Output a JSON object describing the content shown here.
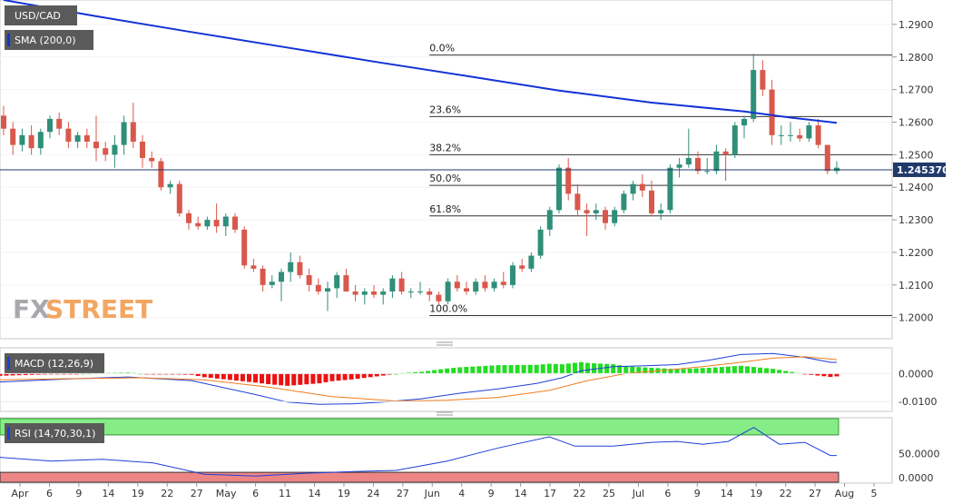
{
  "watermark": {
    "part1": "FX",
    "part2": "STREET"
  },
  "colors": {
    "bull": "#2f8f79",
    "bear": "#d9584c",
    "sma": "#1233d6",
    "macd_line": "#1e3fd8",
    "signal_line": "#f07d1e",
    "hist_pos": "#22dd22",
    "hist_neg": "#ee1111",
    "rsi_line": "#1e3fd8",
    "rsi_overbought": "#86ec86",
    "rsi_oversold": "#ee8585",
    "price_tag_bg": "#1f3a6b",
    "panel_tag_bg": "#5a5a5a"
  },
  "chart_data": [
    {
      "type": "candlestick",
      "title": "USD/CAD",
      "indicator_label": "SMA (200,0)",
      "last_price_label": "1.245370",
      "last_price": 1.24537,
      "ylim": [
        1.1935,
        1.2975
      ],
      "y_ticks": [
        "1.2000",
        "1.2100",
        "1.2200",
        "1.2300",
        "1.2400",
        "1.2500",
        "1.2600",
        "1.2700",
        "1.2800",
        "1.2900"
      ],
      "x_tick_labels": [
        "Apr",
        "6",
        "9",
        "14",
        "19",
        "22",
        "27",
        "May",
        "6",
        "11",
        "14",
        "19",
        "24",
        "27",
        "Jun",
        "4",
        "9",
        "14",
        "17",
        "22",
        "25",
        "Jul",
        "6",
        "9",
        "14",
        "19",
        "22",
        "27",
        "Aug",
        "5"
      ],
      "fibonacci": {
        "high": 1.2806,
        "low": 1.2006,
        "levels": [
          {
            "label": "0.0%",
            "value": 1.2806
          },
          {
            "label": "23.6%",
            "value": 1.2617
          },
          {
            "label": "38.2%",
            "value": 1.25
          },
          {
            "label": "50.0%",
            "value": 1.2406
          },
          {
            "label": "61.8%",
            "value": 1.2312
          },
          {
            "label": "100.0%",
            "value": 1.2006
          }
        ]
      },
      "sma_200": [
        {
          "x": 0,
          "y": 1.2975
        },
        {
          "x": 10,
          "y": 1.2925
        },
        {
          "x": 20,
          "y": 1.2878
        },
        {
          "x": 30,
          "y": 1.2832
        },
        {
          "x": 40,
          "y": 1.2786
        },
        {
          "x": 50,
          "y": 1.2742
        },
        {
          "x": 60,
          "y": 1.2697
        },
        {
          "x": 70,
          "y": 1.266
        },
        {
          "x": 80,
          "y": 1.2633
        },
        {
          "x": 85,
          "y": 1.2614
        },
        {
          "x": 90,
          "y": 1.2598
        }
      ],
      "candles": [
        [
          1.262,
          1.265,
          1.256,
          1.258
        ],
        [
          1.258,
          1.26,
          1.25,
          1.253
        ],
        [
          1.253,
          1.258,
          1.251,
          1.256
        ],
        [
          1.256,
          1.259,
          1.25,
          1.252
        ],
        [
          1.252,
          1.258,
          1.25,
          1.257
        ],
        [
          1.257,
          1.262,
          1.255,
          1.261
        ],
        [
          1.261,
          1.263,
          1.256,
          1.258
        ],
        [
          1.258,
          1.26,
          1.252,
          1.254
        ],
        [
          1.254,
          1.257,
          1.252,
          1.256
        ],
        [
          1.256,
          1.258,
          1.252,
          1.254
        ],
        [
          1.254,
          1.262,
          1.248,
          1.252
        ],
        [
          1.252,
          1.254,
          1.248,
          1.25
        ],
        [
          1.25,
          1.256,
          1.246,
          1.253
        ],
        [
          1.253,
          1.262,
          1.25,
          1.26
        ],
        [
          1.26,
          1.266,
          1.252,
          1.254
        ],
        [
          1.254,
          1.256,
          1.246,
          1.249
        ],
        [
          1.249,
          1.251,
          1.246,
          1.248
        ],
        [
          1.248,
          1.249,
          1.239,
          1.24
        ],
        [
          1.24,
          1.242,
          1.238,
          1.241
        ],
        [
          1.241,
          1.242,
          1.231,
          1.232
        ],
        [
          1.232,
          1.233,
          1.227,
          1.229
        ],
        [
          1.229,
          1.231,
          1.227,
          1.228
        ],
        [
          1.228,
          1.231,
          1.227,
          1.23
        ],
        [
          1.23,
          1.235,
          1.226,
          1.228
        ],
        [
          1.228,
          1.232,
          1.225,
          1.231
        ],
        [
          1.231,
          1.232,
          1.226,
          1.227
        ],
        [
          1.227,
          1.228,
          1.215,
          1.216
        ],
        [
          1.216,
          1.218,
          1.214,
          1.215
        ],
        [
          1.215,
          1.216,
          1.208,
          1.21
        ],
        [
          1.21,
          1.213,
          1.209,
          1.211
        ],
        [
          1.211,
          1.215,
          1.205,
          1.214
        ],
        [
          1.214,
          1.22,
          1.211,
          1.217
        ],
        [
          1.217,
          1.219,
          1.212,
          1.213
        ],
        [
          1.213,
          1.215,
          1.208,
          1.21
        ],
        [
          1.21,
          1.212,
          1.207,
          1.208
        ],
        [
          1.208,
          1.211,
          1.202,
          1.209
        ],
        [
          1.209,
          1.214,
          1.206,
          1.213
        ],
        [
          1.213,
          1.215,
          1.208,
          1.208
        ],
        [
          1.208,
          1.21,
          1.205,
          1.207
        ],
        [
          1.207,
          1.209,
          1.204,
          1.208
        ],
        [
          1.208,
          1.21,
          1.206,
          1.207
        ],
        [
          1.207,
          1.209,
          1.204,
          1.208
        ],
        [
          1.208,
          1.213,
          1.206,
          1.212
        ],
        [
          1.212,
          1.214,
          1.207,
          1.208
        ],
        [
          1.208,
          1.209,
          1.206,
          1.208
        ],
        [
          1.208,
          1.211,
          1.207,
          1.208
        ],
        [
          1.208,
          1.209,
          1.205,
          1.207
        ],
        [
          1.207,
          1.208,
          1.204,
          1.205
        ],
        [
          1.205,
          1.212,
          1.204,
          1.211
        ],
        [
          1.211,
          1.213,
          1.208,
          1.209
        ],
        [
          1.209,
          1.211,
          1.207,
          1.208
        ],
        [
          1.208,
          1.212,
          1.207,
          1.211
        ],
        [
          1.211,
          1.213,
          1.208,
          1.209
        ],
        [
          1.209,
          1.212,
          1.208,
          1.211
        ],
        [
          1.211,
          1.214,
          1.209,
          1.21
        ],
        [
          1.21,
          1.217,
          1.209,
          1.216
        ],
        [
          1.216,
          1.218,
          1.214,
          1.215
        ],
        [
          1.215,
          1.22,
          1.214,
          1.219
        ],
        [
          1.219,
          1.228,
          1.218,
          1.227
        ],
        [
          1.227,
          1.234,
          1.225,
          1.233
        ],
        [
          1.233,
          1.247,
          1.232,
          1.246
        ],
        [
          1.246,
          1.249,
          1.236,
          1.238
        ],
        [
          1.238,
          1.241,
          1.231,
          1.233
        ],
        [
          1.233,
          1.235,
          1.225,
          1.232
        ],
        [
          1.232,
          1.235,
          1.23,
          1.233
        ],
        [
          1.233,
          1.234,
          1.227,
          1.229
        ],
        [
          1.229,
          1.234,
          1.228,
          1.233
        ],
        [
          1.233,
          1.239,
          1.232,
          1.238
        ],
        [
          1.238,
          1.242,
          1.236,
          1.241
        ],
        [
          1.241,
          1.244,
          1.237,
          1.239
        ],
        [
          1.239,
          1.242,
          1.231,
          1.232
        ],
        [
          1.232,
          1.235,
          1.23,
          1.233
        ],
        [
          1.233,
          1.247,
          1.232,
          1.246
        ],
        [
          1.246,
          1.249,
          1.243,
          1.247
        ],
        [
          1.247,
          1.258,
          1.246,
          1.249
        ],
        [
          1.249,
          1.251,
          1.244,
          1.245
        ],
        [
          1.245,
          1.249,
          1.244,
          1.245
        ],
        [
          1.245,
          1.253,
          1.244,
          1.251
        ],
        [
          1.251,
          1.252,
          1.242,
          1.25
        ],
        [
          1.25,
          1.26,
          1.249,
          1.259
        ],
        [
          1.259,
          1.262,
          1.255,
          1.261
        ],
        [
          1.261,
          1.281,
          1.26,
          1.276
        ],
        [
          1.276,
          1.279,
          1.268,
          1.27
        ],
        [
          1.27,
          1.273,
          1.253,
          1.256
        ],
        [
          1.256,
          1.259,
          1.253,
          1.256
        ],
        [
          1.256,
          1.26,
          1.254,
          1.256
        ],
        [
          1.256,
          1.258,
          1.254,
          1.255
        ],
        [
          1.255,
          1.26,
          1.254,
          1.259
        ],
        [
          1.259,
          1.261,
          1.252,
          1.253
        ],
        [
          1.253,
          1.253,
          1.244,
          1.245
        ],
        [
          1.245,
          1.248,
          1.244,
          1.246
        ]
      ]
    },
    {
      "type": "line",
      "title": "MACD (12,26,9)",
      "ylim": [
        -0.0135,
        0.0092
      ],
      "y_ticks": [
        "0.0000",
        "-0.0100"
      ],
      "macd_line": [
        [
          0,
          -0.003
        ],
        [
          10,
          -0.002
        ],
        [
          20,
          -0.0012
        ],
        [
          30,
          -0.0025
        ],
        [
          40,
          -0.0075
        ],
        [
          45,
          -0.0102
        ],
        [
          50,
          -0.011
        ],
        [
          55,
          -0.0108
        ],
        [
          60,
          -0.0102
        ],
        [
          66,
          -0.009
        ],
        [
          72,
          -0.007
        ],
        [
          78,
          -0.0055
        ],
        [
          84,
          -0.0035
        ],
        [
          88,
          -0.0015
        ],
        [
          91,
          0.001
        ],
        [
          96,
          0.0025
        ],
        [
          101,
          0.0028
        ],
        [
          106,
          0.0032
        ],
        [
          111,
          0.0048
        ],
        [
          116,
          0.0068
        ],
        [
          121,
          0.0072
        ],
        [
          126,
          0.0058
        ],
        [
          130,
          0.004
        ],
        [
          131,
          0.004
        ]
      ],
      "signal_line": [
        [
          0,
          -0.0022
        ],
        [
          12,
          -0.0018
        ],
        [
          22,
          -0.0015
        ],
        [
          32,
          -0.0022
        ],
        [
          42,
          -0.0048
        ],
        [
          52,
          -0.0082
        ],
        [
          62,
          -0.0098
        ],
        [
          70,
          -0.0095
        ],
        [
          78,
          -0.0085
        ],
        [
          86,
          -0.006
        ],
        [
          92,
          -0.0025
        ],
        [
          98,
          0.0
        ],
        [
          104,
          0.0012
        ],
        [
          110,
          0.0025
        ],
        [
          116,
          0.004
        ],
        [
          121,
          0.0055
        ],
        [
          126,
          0.006
        ],
        [
          131,
          0.005
        ]
      ]
    },
    {
      "type": "line",
      "title": "RSI (14,70,30,1)",
      "ylim": [
        0,
        100
      ],
      "y_ticks": [
        "50.0000",
        "0.0000"
      ],
      "overbought": 70,
      "oversold": 30,
      "rsi": [
        [
          0,
          46
        ],
        [
          8,
          42
        ],
        [
          16,
          44
        ],
        [
          24,
          40
        ],
        [
          32,
          28
        ],
        [
          40,
          26
        ],
        [
          48,
          29
        ],
        [
          56,
          31
        ],
        [
          62,
          32
        ],
        [
          70,
          42
        ],
        [
          78,
          56
        ],
        [
          86,
          68
        ],
        [
          90,
          58
        ],
        [
          96,
          58
        ],
        [
          102,
          62
        ],
        [
          106,
          63
        ],
        [
          110,
          60
        ],
        [
          114,
          63
        ],
        [
          118,
          78
        ],
        [
          122,
          60
        ],
        [
          126,
          62
        ],
        [
          130,
          48
        ],
        [
          131,
          48
        ]
      ]
    }
  ]
}
